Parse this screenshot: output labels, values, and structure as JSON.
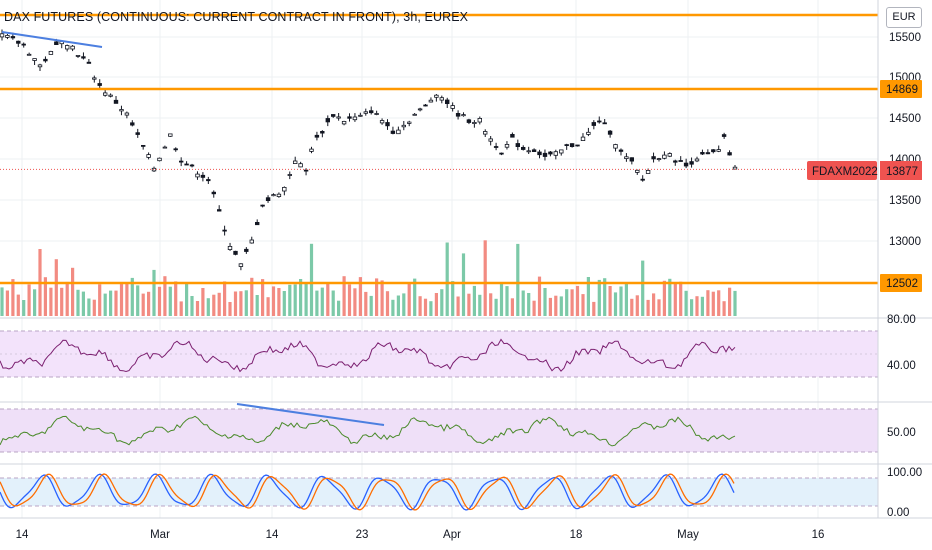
{
  "header": {
    "title": "DAX FUTURES (CONTINUOUS: CURRENT CONTRACT IN FRONT), 3h, EUREX",
    "currency": "EUR"
  },
  "colors": {
    "up": "#26a69a",
    "down": "#ef5350",
    "candle": "#131722",
    "level": "#ff9800",
    "trendline": "#4c7fe0",
    "rsi": "#7b1f70",
    "osc": "#4a8a2a",
    "stoch_k": "#2962ff",
    "stoch_d": "#ff6d00",
    "rsi_band": "#f3e3fb",
    "osc_band": "#efe0f8",
    "stoch_band": "#e3f1fb"
  },
  "price_axis": {
    "ticks": [
      "15500",
      "15000",
      "14500",
      "14000",
      "13500",
      "13000"
    ]
  },
  "price_labels": {
    "level_high": "14869",
    "level_low": "12502",
    "symbol_tag": "FDAXM2022",
    "last_price": "13877"
  },
  "indicator_axes": {
    "rsi_ticks": [
      "80.00",
      "40.00"
    ],
    "osc_ticks": [
      "50.00"
    ],
    "stoch_ticks": [
      "100.00",
      "0.00"
    ]
  },
  "time_axis": {
    "labels": [
      "14",
      "Mar",
      "14",
      "23",
      "Apr",
      "18",
      "May",
      "16"
    ]
  },
  "chart_data": {
    "type": "candlestick",
    "title": "DAX FUTURES (CONTINUOUS: CURRENT CONTRACT IN FRONT), 3h, EUREX",
    "price_range": [
      12450,
      15800
    ],
    "horizontal_levels": [
      15760,
      14869,
      12502
    ],
    "last_price": 13877,
    "close_path": [
      [
        0,
        15520
      ],
      [
        4,
        15400
      ],
      [
        7,
        15150
      ],
      [
        9,
        15300
      ],
      [
        11,
        15480
      ],
      [
        13,
        15380
      ],
      [
        16,
        15150
      ],
      [
        18,
        14900
      ],
      [
        21,
        14700
      ],
      [
        23,
        14550
      ],
      [
        26,
        14150
      ],
      [
        28,
        13900
      ],
      [
        31,
        14300
      ],
      [
        33,
        14000
      ],
      [
        36,
        13850
      ],
      [
        38,
        13750
      ],
      [
        40,
        13350
      ],
      [
        42,
        12950
      ],
      [
        44,
        12700
      ],
      [
        46,
        13000
      ],
      [
        48,
        13450
      ],
      [
        50,
        13550
      ],
      [
        52,
        13650
      ],
      [
        54,
        14000
      ],
      [
        56,
        13850
      ],
      [
        57,
        14150
      ],
      [
        59,
        14350
      ],
      [
        61,
        14550
      ],
      [
        63,
        14480
      ],
      [
        66,
        14520
      ],
      [
        68,
        14600
      ],
      [
        70,
        14480
      ],
      [
        72,
        14350
      ],
      [
        74,
        14420
      ],
      [
        76,
        14550
      ],
      [
        78,
        14650
      ],
      [
        80,
        14820
      ],
      [
        82,
        14700
      ],
      [
        84,
        14560
      ],
      [
        86,
        14480
      ],
      [
        88,
        14470
      ],
      [
        90,
        14250
      ],
      [
        92,
        14100
      ],
      [
        94,
        14240
      ],
      [
        96,
        14130
      ],
      [
        98,
        14120
      ],
      [
        100,
        14030
      ],
      [
        102,
        14060
      ],
      [
        104,
        14150
      ],
      [
        106,
        14200
      ],
      [
        108,
        14320
      ],
      [
        110,
        14480
      ],
      [
        112,
        14340
      ],
      [
        114,
        14080
      ],
      [
        116,
        13950
      ],
      [
        118,
        13750
      ],
      [
        120,
        14000
      ],
      [
        122,
        14080
      ],
      [
        124,
        14000
      ],
      [
        126,
        13920
      ],
      [
        128,
        14030
      ],
      [
        130,
        14050
      ],
      [
        132,
        14100
      ],
      [
        133,
        14250
      ],
      [
        135,
        13877
      ]
    ],
    "rsi_range": [
      20,
      100
    ],
    "rsi_band": [
      30,
      70
    ],
    "osc_range": [
      0,
      100
    ],
    "stoch_range": [
      0,
      100
    ],
    "stoch_band": [
      20,
      80
    ]
  }
}
